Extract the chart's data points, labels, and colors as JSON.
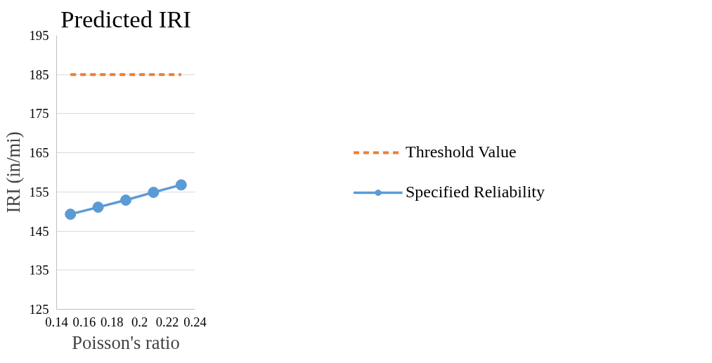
{
  "chart_data": {
    "type": "line",
    "title": "Predicted IRI",
    "xlabel": "Poisson's ratio",
    "ylabel": "IRI (in/mi)",
    "x": [
      0.15,
      0.17,
      0.19,
      0.21,
      0.23
    ],
    "series": [
      {
        "name": "Threshold Value",
        "color": "#ed7d31",
        "values": [
          185,
          185,
          185,
          185,
          185
        ],
        "line_style": "dashed",
        "marker": "none"
      },
      {
        "name": "Specified Reliability",
        "color": "#5b9bd5",
        "values": [
          149.3,
          151.1,
          152.9,
          154.9,
          156.8
        ],
        "line_style": "solid",
        "marker": "circle"
      }
    ],
    "xlim": [
      0.14,
      0.24
    ],
    "xticks": [
      0.14,
      0.16,
      0.18,
      {
        "value": 0.2,
        "label": "0.2"
      },
      0.22,
      0.24
    ],
    "ylim": [
      125,
      195
    ],
    "yticks": [
      125,
      135,
      145,
      155,
      165,
      175,
      185,
      195
    ],
    "grid": "y",
    "legend": "right"
  }
}
